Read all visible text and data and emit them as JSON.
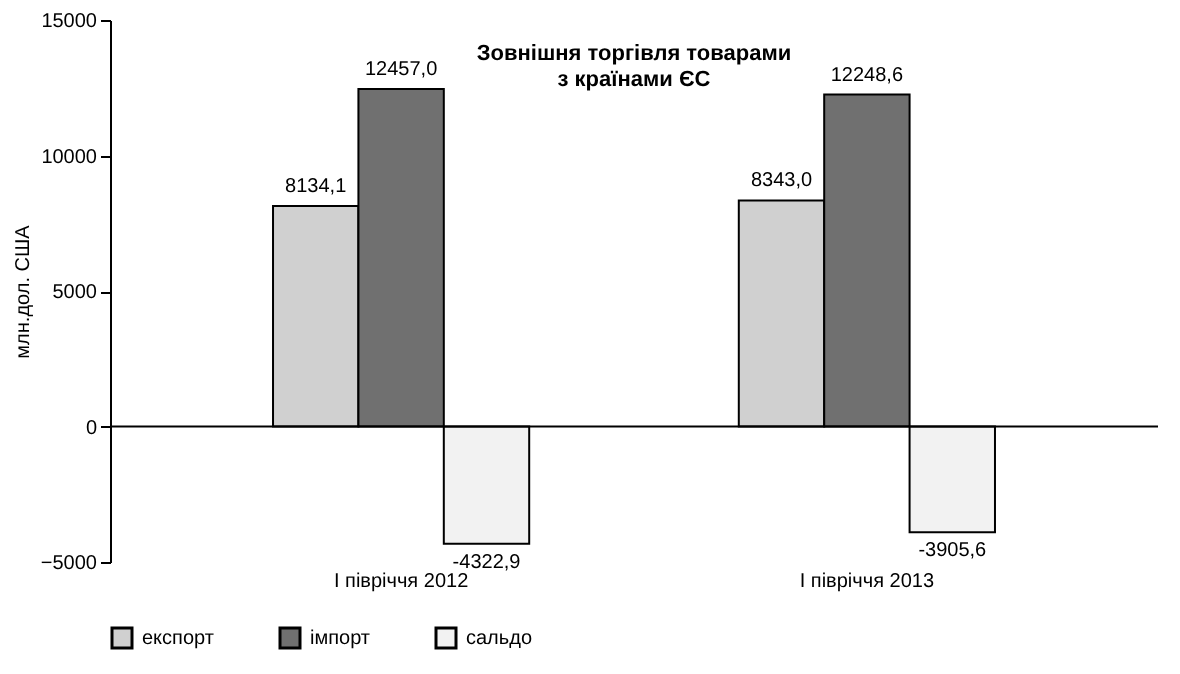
{
  "chart_data": {
    "type": "bar",
    "title": "Зовнішня торгівля товарами\nз країнами ЄС",
    "ylabel": "млн.дол. США",
    "categories": [
      "I півріччя 2012",
      "I півріччя 2013"
    ],
    "series": [
      {
        "name": "експорт",
        "color": "#d0d0d0",
        "values": [
          8134.1,
          8343.0
        ],
        "value_labels": [
          "8134,1",
          "8343,0"
        ]
      },
      {
        "name": "імпорт",
        "color": "#707070",
        "values": [
          12457.0,
          12248.6
        ],
        "value_labels": [
          "12457,0",
          "12248,6"
        ]
      },
      {
        "name": "сальдо",
        "color": "#f2f2f2",
        "values": [
          -4322.9,
          -3905.6
        ],
        "value_labels": [
          "-4322,9",
          "-3905,6"
        ]
      }
    ],
    "ylim": [
      -5000,
      15000
    ],
    "yticks": [
      -5000,
      0,
      5000,
      10000,
      15000
    ],
    "grid": false,
    "legend": "bottom",
    "ref_lines": [
      {
        "axis": "y",
        "value": 0
      }
    ]
  }
}
